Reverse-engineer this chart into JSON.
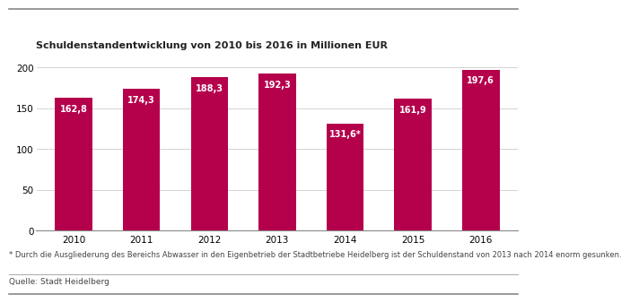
{
  "title": "Schuldenstandentwicklung von 2010 bis 2016 in Millionen EUR",
  "categories": [
    "2010",
    "2011",
    "2012",
    "2013",
    "2014",
    "2015",
    "2016"
  ],
  "values": [
    162.8,
    174.3,
    188.3,
    192.3,
    131.6,
    161.9,
    197.6
  ],
  "labels": [
    "162,8",
    "174,3",
    "188,3",
    "192,3",
    "131,6*",
    "161,9",
    "197,6"
  ],
  "bar_color": "#b5004b",
  "background_color": "#ffffff",
  "ylim": [
    0,
    215
  ],
  "yticks": [
    0,
    50,
    100,
    150,
    200
  ],
  "footnote": "* Durch die Ausgliederung des Bereichs Abwasser in den Eigenbetrieb der Stadtbetriebe Heidelberg ist der Schuldenstand von 2013 nach 2014 enorm gesunken.",
  "source": "Quelle: Stadt Heidelberg",
  "title_fontsize": 8,
  "label_fontsize": 7,
  "tick_fontsize": 7.5,
  "footnote_fontsize": 6,
  "source_fontsize": 6.5
}
